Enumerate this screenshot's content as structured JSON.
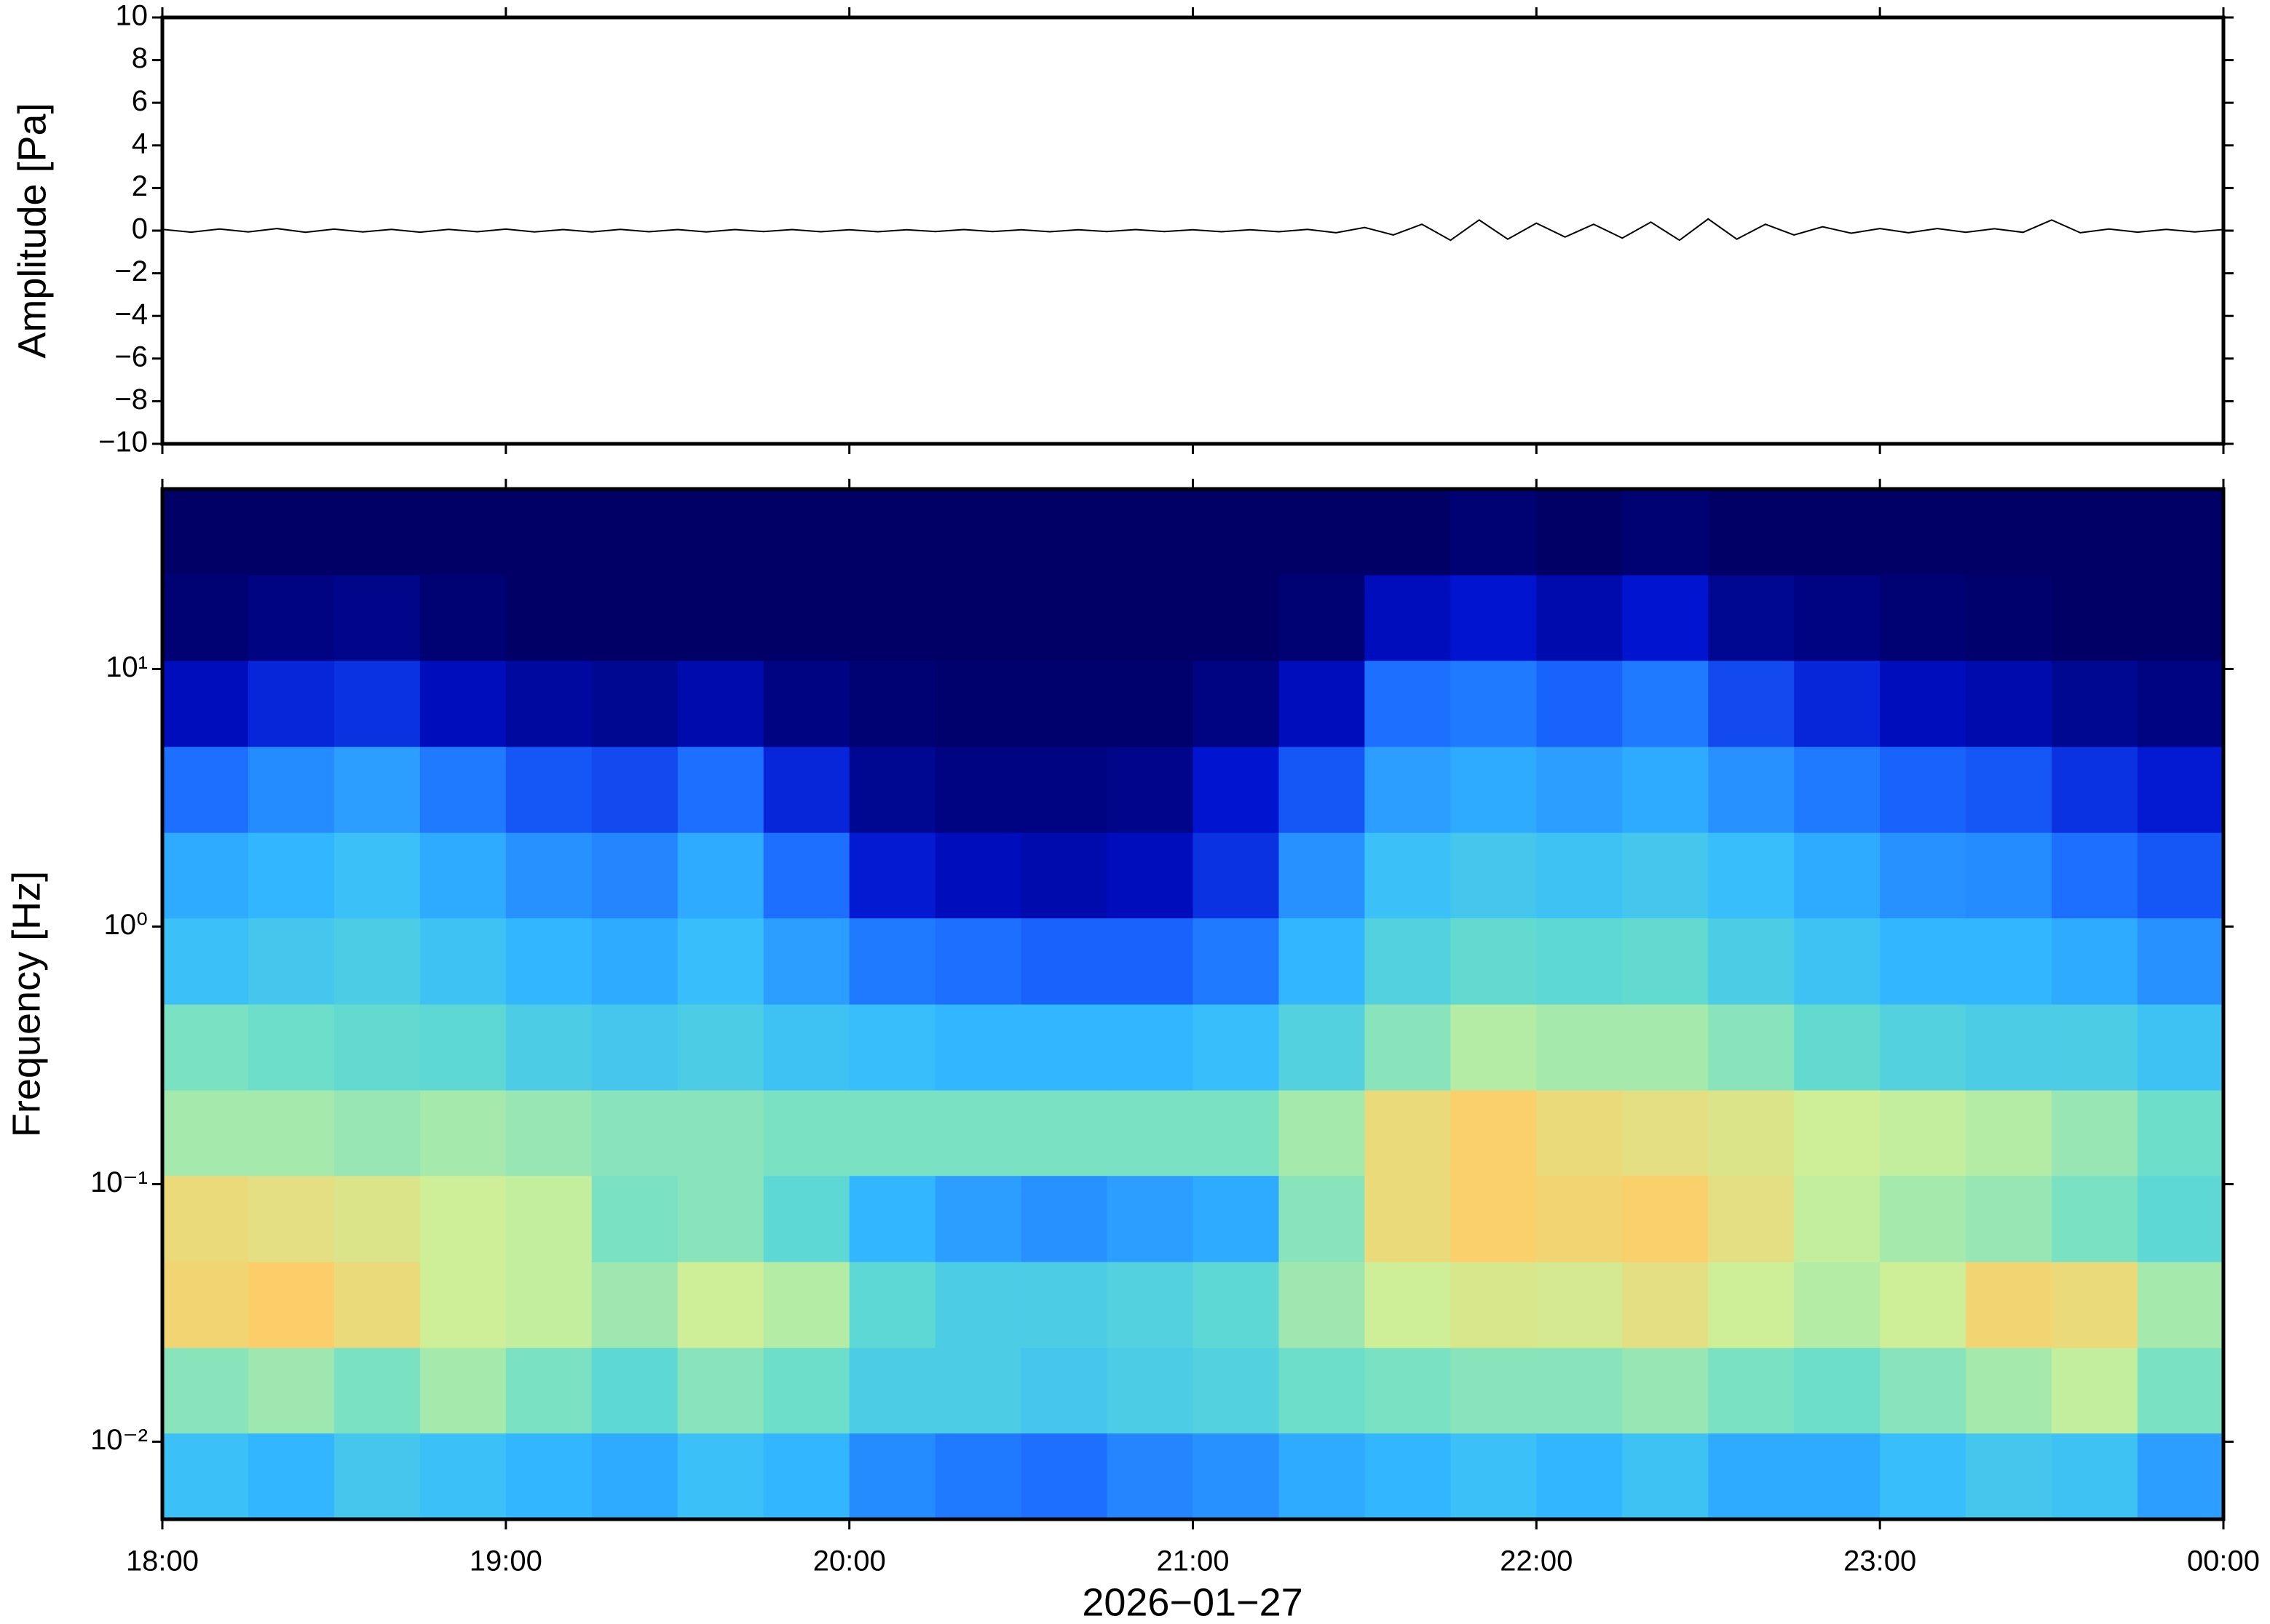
{
  "chart_data": [
    {
      "type": "line",
      "ylabel": "Amplitude [Pa]",
      "x": [
        0,
        5,
        10,
        15,
        20,
        25,
        30,
        35,
        40,
        45,
        50,
        55,
        60,
        65,
        70,
        75,
        80,
        85,
        90,
        95,
        100,
        105,
        110,
        115,
        120,
        125,
        130,
        135,
        140,
        145,
        150,
        155,
        160,
        165,
        170,
        175,
        180,
        185,
        190,
        195,
        200,
        205,
        210,
        215,
        220,
        225,
        230,
        235,
        240,
        245,
        250,
        255,
        260,
        265,
        270,
        275,
        280,
        285,
        290,
        295,
        300,
        305,
        310,
        315,
        320,
        325,
        330,
        335,
        340,
        345,
        350,
        355,
        360
      ],
      "series": [
        {
          "color": "#000000",
          "values": [
            0.06,
            -0.07,
            0.08,
            -0.06,
            0.1,
            -0.08,
            0.07,
            -0.06,
            0.06,
            -0.07,
            0.06,
            -0.05,
            0.07,
            -0.06,
            0.05,
            -0.06,
            0.06,
            -0.05,
            0.05,
            -0.06,
            0.05,
            -0.04,
            0.05,
            -0.05,
            0.04,
            -0.05,
            0.04,
            -0.04,
            0.05,
            -0.04,
            0.04,
            -0.05,
            0.04,
            -0.04,
            0.05,
            -0.04,
            0.04,
            -0.05,
            0.04,
            -0.05,
            0.06,
            -0.1,
            0.15,
            -0.2,
            0.3,
            -0.45,
            0.5,
            -0.4,
            0.35,
            -0.3,
            0.3,
            -0.35,
            0.4,
            -0.45,
            0.55,
            -0.4,
            0.3,
            -0.2,
            0.18,
            -0.12,
            0.1,
            -0.1,
            0.1,
            -0.08,
            0.09,
            -0.08,
            0.5,
            -0.1,
            0.08,
            -0.07,
            0.06,
            -0.06,
            0.05
          ]
        }
      ],
      "xlim": [
        0,
        360
      ],
      "xticks": [
        0,
        60,
        120,
        180,
        240,
        300,
        360
      ],
      "ylim": [
        -10,
        10
      ],
      "yticks": [
        {
          "value": -10,
          "label": "−10"
        },
        {
          "value": -8,
          "label": "−8"
        },
        {
          "value": -6,
          "label": "−6"
        },
        {
          "value": -4,
          "label": "−4"
        },
        {
          "value": -2,
          "label": "−2"
        },
        0,
        2,
        4,
        6,
        8,
        10
      ]
    },
    {
      "type": "heatmap",
      "ylabel": "Frequency [Hz]",
      "xlabel": "2026−01−27",
      "x_edges": [
        0,
        15,
        30,
        45,
        60,
        75,
        90,
        105,
        120,
        135,
        150,
        165,
        180,
        195,
        210,
        225,
        240,
        255,
        270,
        285,
        300,
        315,
        330,
        345,
        360
      ],
      "y_edges": [
        0.005,
        0.0108,
        0.0232,
        0.05,
        0.108,
        0.232,
        0.5,
        1.08,
        2.32,
        5,
        10.8,
        23.2,
        50
      ],
      "values": [
        [
          0.45,
          0.62,
          0.82,
          0.8,
          0.66,
          0.6,
          0.45,
          0.4,
          0.3,
          0.12,
          0.02,
          0
        ],
        [
          0.42,
          0.65,
          0.85,
          0.78,
          0.66,
          0.58,
          0.48,
          0.42,
          0.35,
          0.18,
          0.04,
          0
        ],
        [
          0.48,
          0.6,
          0.8,
          0.76,
          0.64,
          0.56,
          0.5,
          0.45,
          0.38,
          0.2,
          0.05,
          0
        ],
        [
          0.45,
          0.66,
          0.72,
          0.72,
          0.66,
          0.55,
          0.46,
          0.4,
          0.32,
          0.12,
          0.02,
          0
        ],
        [
          0.42,
          0.6,
          0.7,
          0.7,
          0.64,
          0.5,
          0.42,
          0.36,
          0.26,
          0.08,
          0,
          0
        ],
        [
          0.4,
          0.55,
          0.65,
          0.6,
          0.62,
          0.48,
          0.4,
          0.34,
          0.24,
          0.06,
          0,
          0
        ],
        [
          0.45,
          0.62,
          0.72,
          0.62,
          0.62,
          0.5,
          0.44,
          0.4,
          0.3,
          0.1,
          0,
          0
        ],
        [
          0.42,
          0.58,
          0.68,
          0.55,
          0.6,
          0.46,
          0.38,
          0.3,
          0.18,
          0.04,
          0,
          0
        ],
        [
          0.35,
          0.5,
          0.55,
          0.42,
          0.6,
          0.44,
          0.32,
          0.16,
          0.06,
          0.02,
          0,
          0
        ],
        [
          0.32,
          0.5,
          0.5,
          0.38,
          0.6,
          0.42,
          0.3,
          0.12,
          0.04,
          0.01,
          0,
          0
        ],
        [
          0.3,
          0.48,
          0.5,
          0.36,
          0.6,
          0.42,
          0.28,
          0.1,
          0.04,
          0.01,
          0,
          0
        ],
        [
          0.34,
          0.5,
          0.52,
          0.38,
          0.6,
          0.42,
          0.28,
          0.12,
          0.05,
          0.01,
          0,
          0
        ],
        [
          0.36,
          0.52,
          0.55,
          0.4,
          0.6,
          0.44,
          0.32,
          0.2,
          0.15,
          0.04,
          0,
          0
        ],
        [
          0.4,
          0.58,
          0.65,
          0.62,
          0.66,
          0.52,
          0.42,
          0.36,
          0.26,
          0.12,
          0.02,
          0
        ],
        [
          0.42,
          0.6,
          0.72,
          0.8,
          0.8,
          0.62,
          0.52,
          0.45,
          0.38,
          0.3,
          0.12,
          0
        ],
        [
          0.45,
          0.62,
          0.75,
          0.84,
          0.84,
          0.68,
          0.56,
          0.48,
          0.4,
          0.32,
          0.15,
          0.02
        ],
        [
          0.42,
          0.62,
          0.74,
          0.82,
          0.8,
          0.66,
          0.55,
          0.46,
          0.38,
          0.28,
          0.1,
          0
        ],
        [
          0.46,
          0.64,
          0.78,
          0.84,
          0.78,
          0.66,
          0.56,
          0.48,
          0.4,
          0.32,
          0.15,
          0.02
        ],
        [
          0.4,
          0.6,
          0.72,
          0.78,
          0.76,
          0.62,
          0.5,
          0.44,
          0.36,
          0.24,
          0.06,
          0
        ],
        [
          0.4,
          0.58,
          0.68,
          0.7,
          0.72,
          0.56,
          0.46,
          0.4,
          0.32,
          0.18,
          0.04,
          0
        ],
        [
          0.44,
          0.62,
          0.72,
          0.66,
          0.7,
          0.52,
          0.42,
          0.36,
          0.28,
          0.12,
          0.02,
          0
        ],
        [
          0.48,
          0.66,
          0.82,
          0.64,
          0.68,
          0.5,
          0.42,
          0.35,
          0.26,
          0.1,
          0.01,
          0
        ],
        [
          0.46,
          0.7,
          0.8,
          0.6,
          0.64,
          0.5,
          0.4,
          0.3,
          0.2,
          0.06,
          0,
          0
        ],
        [
          0.38,
          0.6,
          0.66,
          0.55,
          0.58,
          0.46,
          0.36,
          0.26,
          0.16,
          0.04,
          0,
          0
        ]
      ],
      "zlim": [
        0,
        1
      ],
      "colors": [
        "#000066",
        "#0010cc",
        "#1a66ff",
        "#33bbff",
        "#66ddcc",
        "#ccf099",
        "#ffcc66",
        "#ff6633"
      ],
      "xlim": [
        0,
        360
      ],
      "xticks": [
        {
          "value": 0,
          "label": "18:00"
        },
        {
          "value": 60,
          "label": "19:00"
        },
        {
          "value": 120,
          "label": "20:00"
        },
        {
          "value": 180,
          "label": "21:00"
        },
        {
          "value": 240,
          "label": "22:00"
        },
        {
          "value": 300,
          "label": "23:00"
        },
        {
          "value": 360,
          "label": "00:00"
        }
      ],
      "ylim": [
        0.005,
        50
      ],
      "yscale": "log",
      "yticks": [
        {
          "value": 0.01,
          "label": "10⁻²"
        },
        {
          "value": 0.1,
          "label": "10⁻¹"
        },
        {
          "value": 1,
          "label": "10⁰"
        },
        {
          "value": 10,
          "label": "10¹"
        }
      ]
    }
  ]
}
